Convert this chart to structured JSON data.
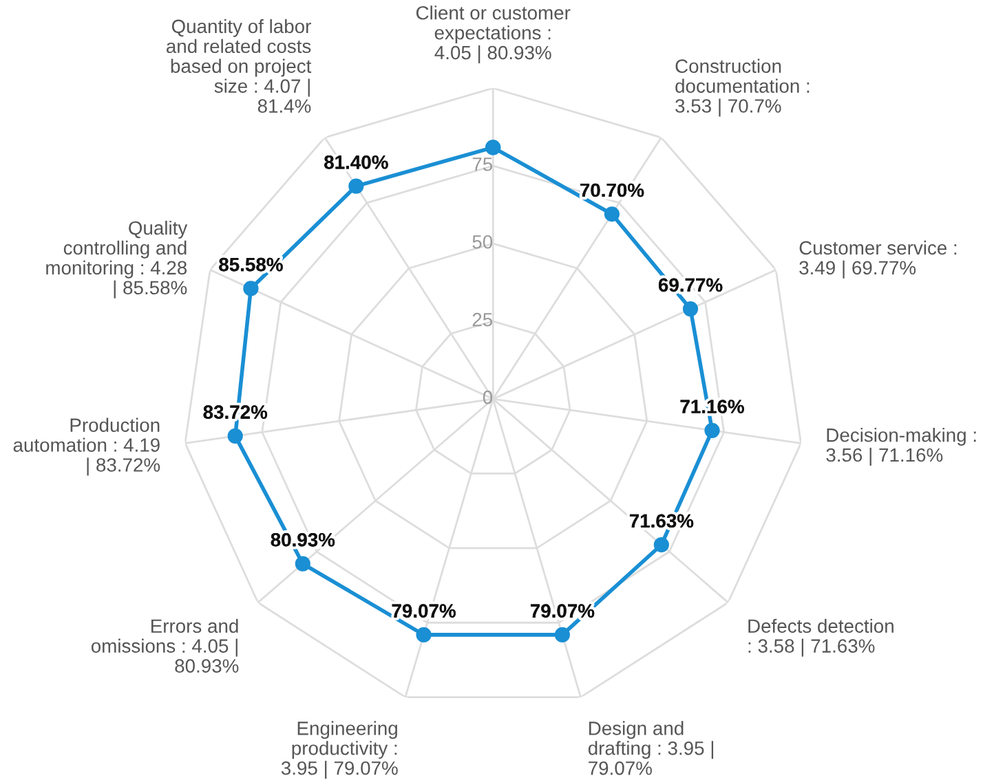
{
  "chart_data": {
    "type": "radar",
    "categories": [
      "Client or customer expectations : 4.05 | 80.93%",
      "Construction documentation : 3.53 | 70.7%",
      "Customer service : 3.49 | 69.77%",
      "Decision-making : 3.56 | 71.16%",
      "Defects detection : 3.58 | 71.63%",
      "Design and drafting : 3.95 | 79.07%",
      "Engineering productivity : 3.95 | 79.07%",
      "Errors and omissions : 4.05 | 80.93%",
      "Production automation : 4.19 | 83.72%",
      "Quality controlling and monitoring : 4.28 | 85.58%",
      "Quantity of labor and related costs based on project size : 4.07 | 81.4%"
    ],
    "series": [
      {
        "color": "#1a8fd4",
        "values": [
          80.93,
          70.7,
          69.77,
          71.16,
          71.63,
          79.07,
          79.07,
          80.93,
          83.72,
          85.58,
          81.4
        ],
        "value_labels": [
          null,
          "70.70%",
          "69.77%",
          "71.16%",
          "71.63%",
          "79.07%",
          "79.07%",
          "80.93%",
          "83.72%",
          "85.58%",
          "81.40%"
        ]
      }
    ],
    "ylim": [
      0,
      100
    ],
    "yticks": [
      0,
      25,
      50,
      75
    ],
    "grid": true,
    "marker": "circle",
    "line_style": "solid"
  }
}
